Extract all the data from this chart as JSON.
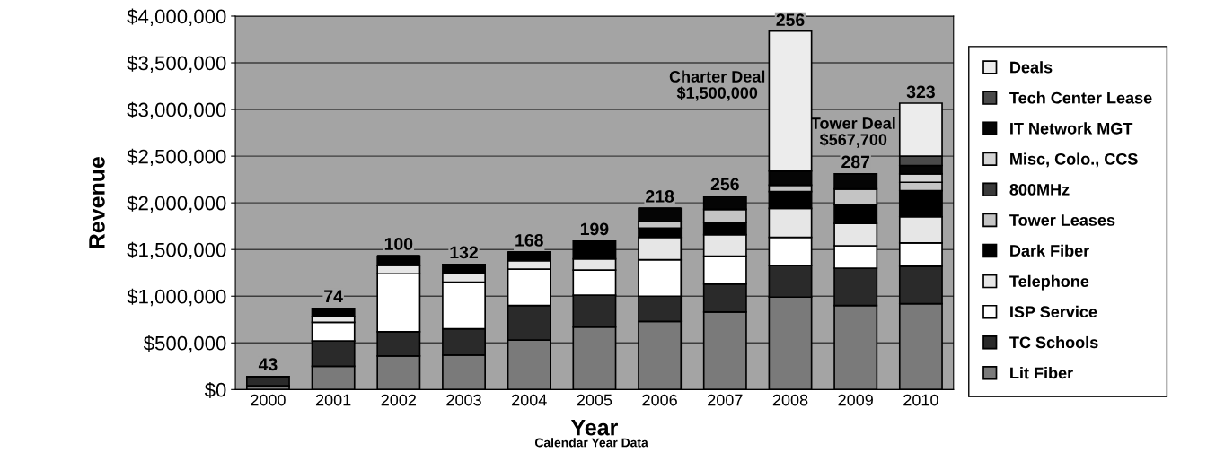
{
  "chart_data": {
    "type": "bar",
    "stacked": true,
    "xlabel": "Year",
    "ylabel": "Revenue",
    "categories": [
      "2000",
      "2001",
      "2002",
      "2003",
      "2004",
      "2005",
      "2006",
      "2007",
      "2008",
      "2009",
      "2010"
    ],
    "series": [
      {
        "name": "Lit Fiber",
        "color": "#7a7a7a",
        "values": [
          40000,
          250000,
          360000,
          370000,
          530000,
          670000,
          730000,
          830000,
          990000,
          900000,
          920000
        ]
      },
      {
        "name": "TC Schools",
        "color": "#2a2a2a",
        "values": [
          100000,
          270000,
          260000,
          280000,
          370000,
          340000,
          270000,
          300000,
          340000,
          400000,
          400000
        ]
      },
      {
        "name": "ISP Service",
        "color": "#ffffff",
        "values": [
          null,
          200000,
          620000,
          500000,
          390000,
          270000,
          390000,
          300000,
          300000,
          240000,
          250000
        ]
      },
      {
        "name": "Telephone",
        "color": "#e6e6e6",
        "values": [
          null,
          60000,
          90000,
          90000,
          90000,
          120000,
          240000,
          230000,
          310000,
          240000,
          280000
        ]
      },
      {
        "name": "Dark Fiber",
        "color": "#000000",
        "values": [
          null,
          90000,
          100000,
          100000,
          90000,
          190000,
          100000,
          130000,
          180000,
          200000,
          280000
        ]
      },
      {
        "name": "Tower Leases",
        "color": "#c4c4c4",
        "values": [
          null,
          null,
          null,
          null,
          null,
          null,
          70000,
          140000,
          70000,
          170000,
          90000
        ]
      },
      {
        "name": "800MHz",
        "color": "#3a3a3a",
        "values": [
          null,
          null,
          null,
          null,
          null,
          null,
          null,
          null,
          null,
          null,
          null
        ]
      },
      {
        "name": "Misc, Colo., CCS",
        "color": "#d4d4d4",
        "values": [
          null,
          null,
          null,
          null,
          null,
          null,
          null,
          null,
          null,
          null,
          90000
        ]
      },
      {
        "name": "IT Network MGT",
        "color": "#050505",
        "values": [
          null,
          null,
          null,
          null,
          null,
          null,
          140000,
          140000,
          150000,
          160000,
          90000
        ]
      },
      {
        "name": "Tech Center Lease",
        "color": "#4a4a4a",
        "values": [
          null,
          null,
          null,
          null,
          null,
          null,
          null,
          null,
          null,
          null,
          100000
        ]
      },
      {
        "name": "Deals",
        "color": "#ececec",
        "values": [
          null,
          null,
          null,
          null,
          null,
          null,
          null,
          null,
          1500000,
          null,
          567700
        ]
      }
    ],
    "ylim": [
      0,
      4000000
    ],
    "yticks": [
      {
        "value": 0,
        "label": "$0"
      },
      {
        "value": 500000,
        "label": "$500,000"
      },
      {
        "value": 1000000,
        "label": "$1,000,000"
      },
      {
        "value": 1500000,
        "label": "$1,500,000"
      },
      {
        "value": 2000000,
        "label": "$2,000,000"
      },
      {
        "value": 2500000,
        "label": "$2,500,000"
      },
      {
        "value": 3000000,
        "label": "$3,000,000"
      },
      {
        "value": 3500000,
        "label": "$3,500,000"
      },
      {
        "value": 4000000,
        "label": "$4,000,000"
      }
    ],
    "grid": "y",
    "legend": "right",
    "annotations": [
      {
        "text": "43",
        "x": "2000",
        "y": 140000
      },
      {
        "text": "74",
        "x": "2001",
        "y": 870000
      },
      {
        "text": "100",
        "x": "2002",
        "y": 1430000
      },
      {
        "text": "132",
        "x": "2003",
        "y": 1340000
      },
      {
        "text": "168",
        "x": "2004",
        "y": 1470000
      },
      {
        "text": "199",
        "x": "2005",
        "y": 1590000
      },
      {
        "text": "218",
        "x": "2006",
        "y": 1940000
      },
      {
        "text": "256",
        "x": "2007",
        "y": 2070000
      },
      {
        "text": "256",
        "x": "2008",
        "y": 3830000
      },
      {
        "text": "287",
        "x": "2009",
        "y": 2310000
      },
      {
        "text": "323",
        "x": "2010",
        "y": 3060000
      },
      "Charter Deal\n$1,500,000",
      "Tower Deal\n$567,700",
      "Calendar Year Data"
    ]
  }
}
